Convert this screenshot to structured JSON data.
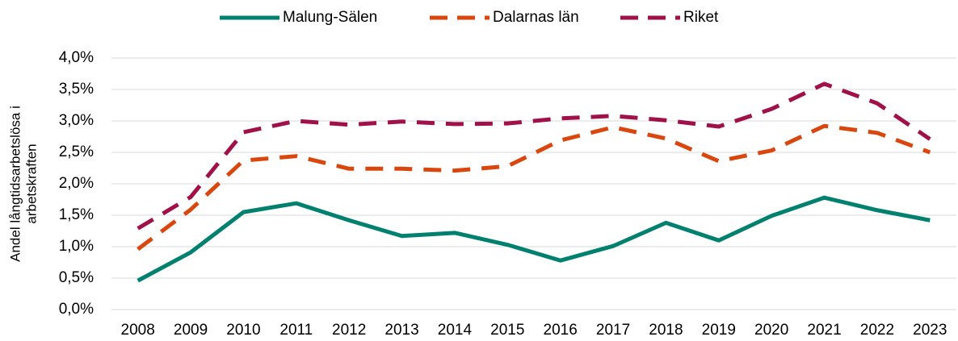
{
  "chart_data": {
    "type": "line",
    "y_label": [
      "Andel långtidsarbetslösa i",
      "arbetskraften"
    ],
    "categories": [
      "2008",
      "2009",
      "2010",
      "2011",
      "2012",
      "2013",
      "2014",
      "2015",
      "2016",
      "2017",
      "2018",
      "2019",
      "2020",
      "2021",
      "2022",
      "2023"
    ],
    "series": [
      {
        "name": "Malung-Sälen",
        "color": "#00806e",
        "line_style": "solid",
        "values": [
          0.46,
          0.91,
          1.55,
          1.69,
          1.42,
          1.17,
          1.22,
          1.03,
          0.78,
          1.01,
          1.38,
          1.1,
          1.49,
          1.78,
          1.58,
          1.42
        ]
      },
      {
        "name": "Dalarnas län",
        "color": "#d9470f",
        "line_style": "dashed",
        "values": [
          0.96,
          1.59,
          2.37,
          2.44,
          2.24,
          2.24,
          2.21,
          2.28,
          2.69,
          2.9,
          2.72,
          2.36,
          2.53,
          2.92,
          2.81,
          2.5
        ]
      },
      {
        "name": "Riket",
        "color": "#a0114a",
        "line_style": "dashed",
        "values": [
          1.29,
          1.79,
          2.82,
          3.0,
          2.94,
          2.99,
          2.95,
          2.96,
          3.04,
          3.08,
          3.01,
          2.91,
          3.19,
          3.59,
          3.28,
          2.71
        ]
      }
    ],
    "ylim": [
      0,
      4
    ],
    "yticks": [
      {
        "value": 0,
        "label": "0,0%"
      },
      {
        "value": 0.5,
        "label": "0,5%"
      },
      {
        "value": 1,
        "label": "1,0%"
      },
      {
        "value": 1.5,
        "label": "1,5%"
      },
      {
        "value": 2,
        "label": "2,0%"
      },
      {
        "value": 2.5,
        "label": "2,5%"
      },
      {
        "value": 3,
        "label": "3,0%"
      },
      {
        "value": 3.5,
        "label": "3,5%"
      },
      {
        "value": 4,
        "label": "4,0%"
      }
    ],
    "grid": true,
    "legend": "top"
  }
}
